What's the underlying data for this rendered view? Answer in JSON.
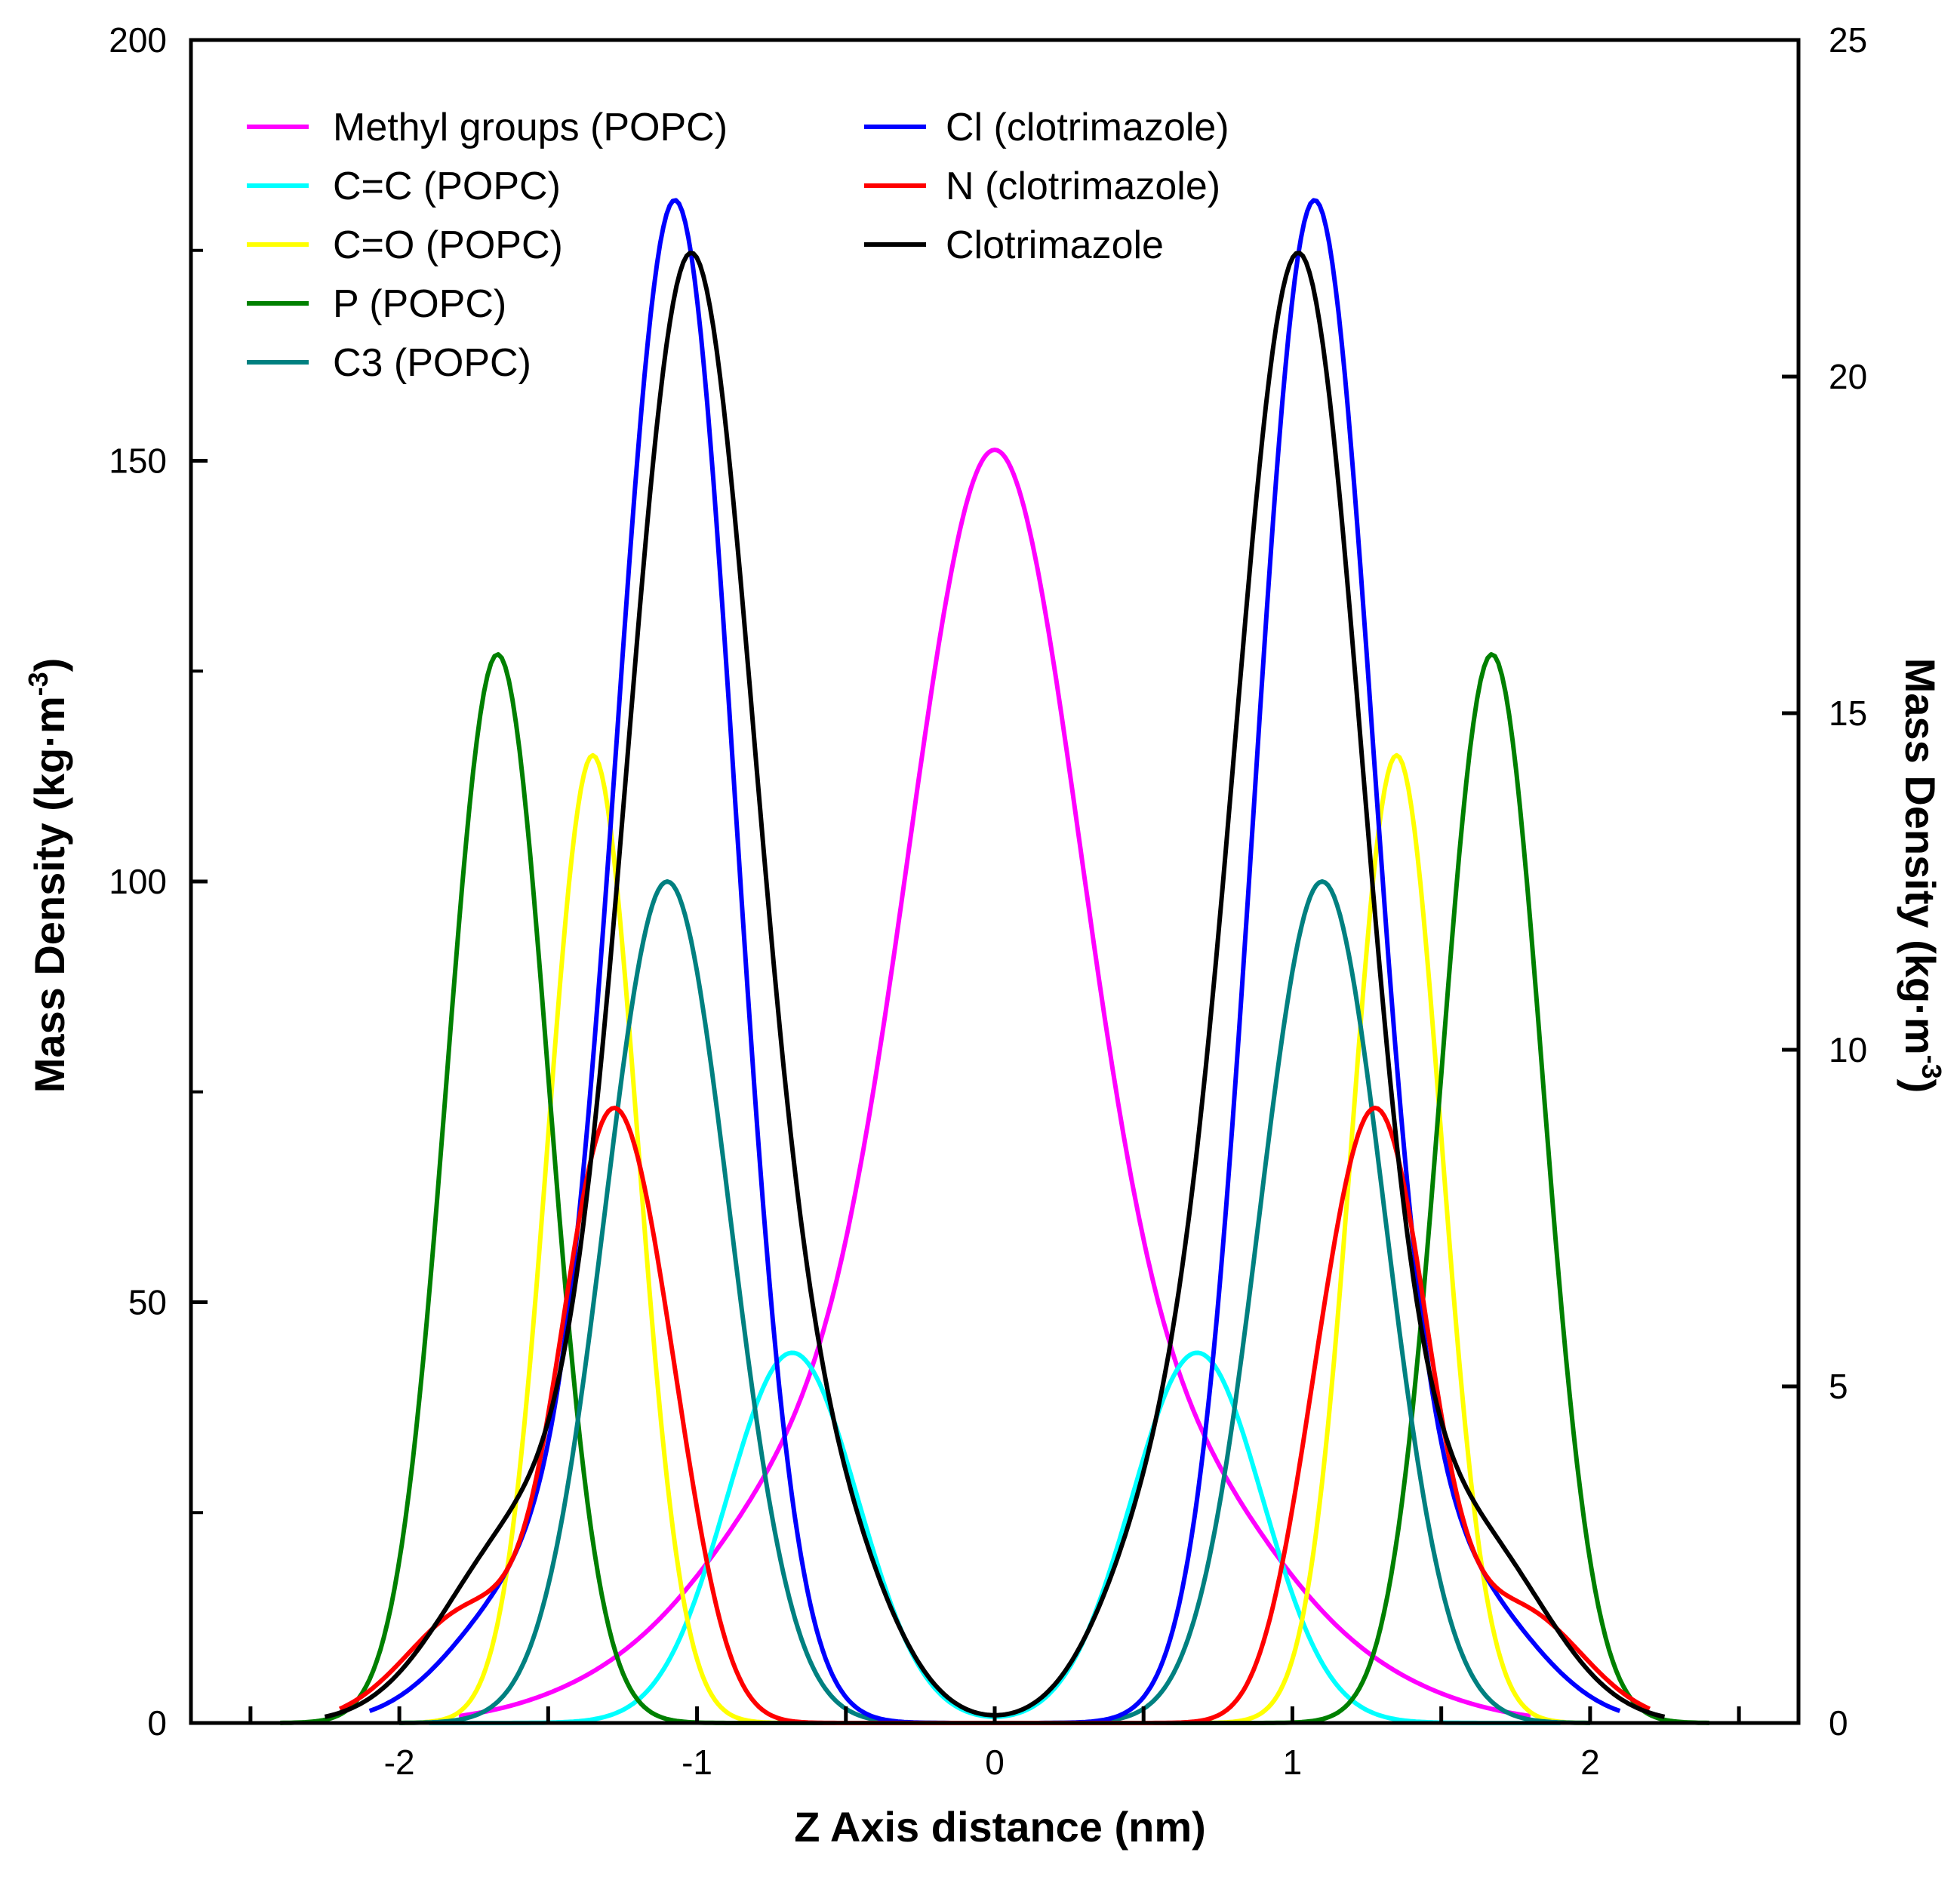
{
  "chart_data": {
    "type": "line",
    "title": "",
    "xlabel": "Z Axis distance (nm)",
    "ylabel_left": "Mass Density (kg·m",
    "ylabel_left_exp": "-3",
    "ylabel_left_close": ")",
    "ylabel_right": "Mass Density (kg·m",
    "ylabel_right_exp": "-3",
    "ylabel_right_close": ")",
    "xlim": [
      -2.7,
      2.7
    ],
    "ylim_left": [
      0,
      200
    ],
    "ylim_right": [
      0,
      25
    ],
    "x_ticks": [
      -2,
      -1,
      0,
      1,
      2
    ],
    "x_tick_labels": [
      "-2",
      "-1",
      "0",
      "1",
      "2"
    ],
    "y_left_ticks": [
      0,
      50,
      100,
      150,
      200
    ],
    "y_left_tick_labels": [
      "0",
      "50",
      "100",
      "150",
      "200"
    ],
    "y_right_ticks": [
      0,
      5,
      10,
      15,
      20,
      25
    ],
    "y_right_tick_labels": [
      "0",
      "5",
      "10",
      "15",
      "20",
      "25"
    ],
    "legend_position": "top-left",
    "series": [
      {
        "name": "Methyl groups (POPC)",
        "color": "#ff00ff",
        "axis": "left",
        "shape": "gauss",
        "x_range": [
          -1.8,
          1.8
        ],
        "components": [
          {
            "center": 0,
            "amp": 147,
            "width": 0.3
          },
          {
            "center": -0.65,
            "amp": 22,
            "width": 0.3
          },
          {
            "center": 0.65,
            "amp": 22,
            "width": 0.3
          },
          {
            "center": -1.1,
            "amp": 6,
            "width": 0.35
          },
          {
            "center": 1.1,
            "amp": 6,
            "width": 0.35
          }
        ]
      },
      {
        "name": "C=C (POPC)",
        "color": "#00ffff",
        "axis": "left",
        "shape": "gauss",
        "x_range": [
          -1.9,
          1.9
        ],
        "components": [
          {
            "center": -0.68,
            "amp": 44,
            "width": 0.22
          },
          {
            "center": 0.68,
            "amp": 44,
            "width": 0.22
          }
        ]
      },
      {
        "name": "C=O (POPC)",
        "color": "#ffff00",
        "axis": "left",
        "shape": "gauss",
        "x_range": [
          -2.0,
          2.0
        ],
        "components": [
          {
            "center": -1.35,
            "amp": 115,
            "width": 0.15
          },
          {
            "center": 1.35,
            "amp": 115,
            "width": 0.15
          }
        ]
      },
      {
        "name": "P (POPC)",
        "color": "#008000",
        "axis": "left",
        "shape": "gauss",
        "x_range": [
          -2.4,
          2.4
        ],
        "components": [
          {
            "center": -1.67,
            "amp": 127,
            "width": 0.17
          },
          {
            "center": 1.67,
            "amp": 127,
            "width": 0.17
          }
        ]
      },
      {
        "name": "C3 (POPC)",
        "color": "#008080",
        "axis": "left",
        "shape": "gauss",
        "x_range": [
          -2.0,
          2.0
        ],
        "components": [
          {
            "center": -1.1,
            "amp": 100,
            "width": 0.21
          },
          {
            "center": 1.1,
            "amp": 100,
            "width": 0.21
          }
        ]
      },
      {
        "name": "Cl (clotrimazole)",
        "color": "#0000ff",
        "axis": "right",
        "shape": "gauss",
        "x_range": [
          -2.1,
          2.1
        ],
        "components": [
          {
            "center": -1.07,
            "amp": 22.3,
            "width": 0.2
          },
          {
            "center": 1.07,
            "amp": 22.3,
            "width": 0.2
          },
          {
            "center": -1.55,
            "amp": 2,
            "width": 0.25
          },
          {
            "center": 1.55,
            "amp": 2,
            "width": 0.25
          }
        ]
      },
      {
        "name": "N (clotrimazole)",
        "color": "#ff0000",
        "axis": "right",
        "shape": "gauss",
        "x_range": [
          -2.2,
          2.2
        ],
        "components": [
          {
            "center": -1.32,
            "amp": 7.4,
            "width": 0.15
          },
          {
            "center": 1.32,
            "amp": 7.4,
            "width": 0.15
          },
          {
            "center": -1.12,
            "amp": 3.5,
            "width": 0.14
          },
          {
            "center": 1.12,
            "amp": 3.5,
            "width": 0.14
          },
          {
            "center": -1.75,
            "amp": 1.7,
            "width": 0.22
          },
          {
            "center": 1.75,
            "amp": 1.7,
            "width": 0.22
          }
        ]
      },
      {
        "name": "Clotrimazole",
        "color": "#000000",
        "axis": "right",
        "shape": "gauss",
        "x_range": [
          -2.25,
          2.25
        ],
        "components": [
          {
            "center": -1.02,
            "amp": 21.5,
            "width": 0.22
          },
          {
            "center": 1.02,
            "amp": 21.5,
            "width": 0.22
          },
          {
            "center": -1.6,
            "amp": 2.7,
            "width": 0.25
          },
          {
            "center": 1.6,
            "amp": 2.7,
            "width": 0.25
          },
          {
            "center": -0.55,
            "amp": 2.5,
            "width": 0.2
          },
          {
            "center": 0.55,
            "amp": 2.5,
            "width": 0.2
          }
        ]
      }
    ]
  }
}
